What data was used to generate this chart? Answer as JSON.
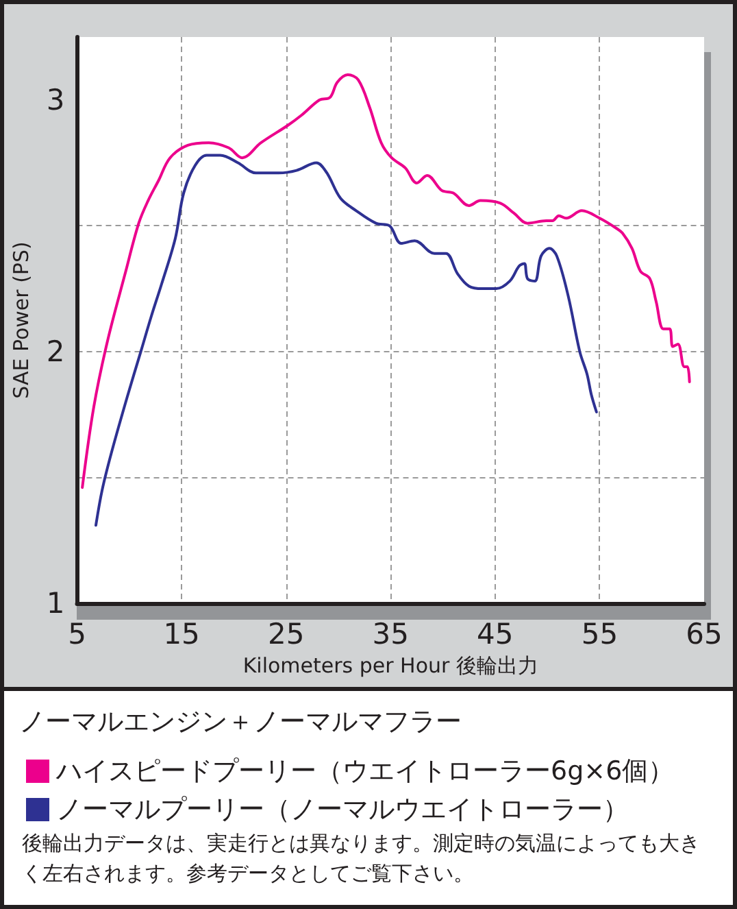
{
  "chart_data": {
    "type": "line",
    "xlabel": "Kilometers per Hour 後輪出力",
    "ylabel": "SAE Power (PS)",
    "annotations": [
      "ノーマルエンジン＋ノーマルマフラー",
      "後輪出力データは、実走行とは異なります。測定時の気温によっても大きく左右されます。参考データとしてご覧下さい。"
    ],
    "xlim": [
      5,
      65
    ],
    "xticks": [
      5,
      15,
      25,
      35,
      45,
      55,
      65
    ],
    "ylim": [
      1,
      3.25
    ],
    "yticks": [
      1,
      {
        "value": 1.5,
        "label": null
      },
      2,
      {
        "value": 2.5,
        "label": null
      },
      3
    ],
    "grid": true,
    "legend": "bottom",
    "marker": "none",
    "line_style": "solid",
    "series": [
      {
        "name": "ハイスピードプーリー（ウエイトローラー6g×6個）",
        "color": "#ec008c",
        "x": [
          5.5,
          6.6,
          7.9,
          9.6,
          10.9,
          11.8,
          12.8,
          13.9,
          15.6,
          17.6,
          19.5,
          20.8,
          22.6,
          25.2,
          26.5,
          28.2,
          29.2,
          29.9,
          30.9,
          31.9,
          33.0,
          34.1,
          35.1,
          36.4,
          37.5,
          38.5,
          39.9,
          41.0,
          42.5,
          43.6,
          45.5,
          46.8,
          48.1,
          49.9,
          50.5,
          51.1,
          51.8,
          53.3,
          55.0,
          56.6,
          57.2,
          58.1,
          58.9,
          59.8,
          60.4,
          61.1,
          61.7,
          62.0,
          62.5,
          63.1,
          63.4,
          63.6
        ],
        "values": [
          1.46,
          1.78,
          2.04,
          2.31,
          2.51,
          2.6,
          2.68,
          2.77,
          2.82,
          2.83,
          2.81,
          2.77,
          2.83,
          2.9,
          2.94,
          3.0,
          3.01,
          3.07,
          3.1,
          3.08,
          2.97,
          2.83,
          2.77,
          2.73,
          2.67,
          2.7,
          2.64,
          2.63,
          2.58,
          2.6,
          2.59,
          2.55,
          2.51,
          2.52,
          2.52,
          2.54,
          2.53,
          2.56,
          2.53,
          2.49,
          2.47,
          2.41,
          2.32,
          2.29,
          2.2,
          2.09,
          2.09,
          2.02,
          2.03,
          1.94,
          1.94,
          1.88
        ]
      },
      {
        "name": "ノーマルプーリー（ノーマルウエイトローラー）",
        "color": "#2e3192",
        "x": [
          6.8,
          7.4,
          8.3,
          9.8,
          11.1,
          12.1,
          13.1,
          14.4,
          15.2,
          16.3,
          17.4,
          18.7,
          20.4,
          22.1,
          24.3,
          26.0,
          27.9,
          28.9,
          30.2,
          31.7,
          33.6,
          34.9,
          36.0,
          37.3,
          39.2,
          40.3,
          41.4,
          42.5,
          43.8,
          45.1,
          46.4,
          47.3,
          47.8,
          48.1,
          48.8,
          49.4,
          50.2,
          50.9,
          52.0,
          53.1,
          53.8,
          54.2,
          54.7
        ],
        "values": [
          1.31,
          1.45,
          1.6,
          1.82,
          2.0,
          2.14,
          2.27,
          2.45,
          2.63,
          2.74,
          2.78,
          2.78,
          2.75,
          2.71,
          2.71,
          2.72,
          2.75,
          2.71,
          2.61,
          2.56,
          2.51,
          2.5,
          2.43,
          2.44,
          2.39,
          2.39,
          2.31,
          2.26,
          2.25,
          2.25,
          2.28,
          2.34,
          2.35,
          2.29,
          2.28,
          2.38,
          2.41,
          2.38,
          2.22,
          2.0,
          1.91,
          1.83,
          1.76
        ]
      }
    ]
  }
}
